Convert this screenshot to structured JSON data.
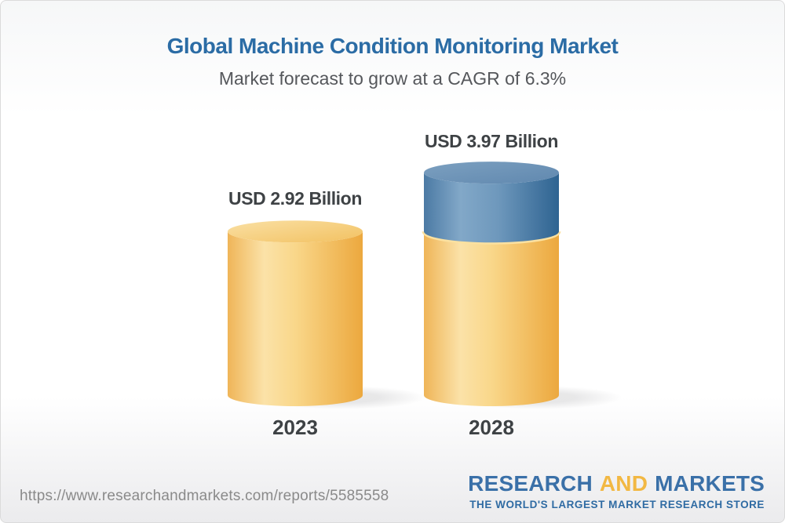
{
  "title": "Global Machine Condition Monitoring Market",
  "subtitle": "Market forecast to grow at a CAGR of 6.3%",
  "chart_data": {
    "type": "bar",
    "bar_style": "3d-cylinder",
    "title": "Global Machine Condition Monitoring Market",
    "subtitle": "Market forecast to grow at a CAGR of 6.3%",
    "categories": [
      "2023",
      "2028"
    ],
    "values": [
      2.92,
      3.97
    ],
    "value_labels": [
      "USD 2.92 Billion",
      "USD 3.97 Billion"
    ],
    "unit": "USD Billion",
    "cagr_pct": 6.3,
    "ylim": [
      0,
      4.5
    ],
    "legend": "none",
    "grid": "off",
    "colors": {
      "base_segment": "#F6CE7C",
      "growth_segment": "#6D94B8",
      "label_text": "#3E4245"
    }
  },
  "footer": {
    "url": "https://www.researchandmarkets.com/reports/5585558",
    "logo": {
      "research": "RESEARCH",
      "and": "AND",
      "markets": "MARKETS",
      "tagline": "THE WORLD'S LARGEST MARKET RESEARCH STORE"
    }
  },
  "colors": {
    "title_blue": "#2B6CA5",
    "subtitle_gray": "#55575B",
    "url_gray": "#8A8A8A",
    "logo_blue": "#3A70A8",
    "logo_gold": "#F2B843"
  }
}
